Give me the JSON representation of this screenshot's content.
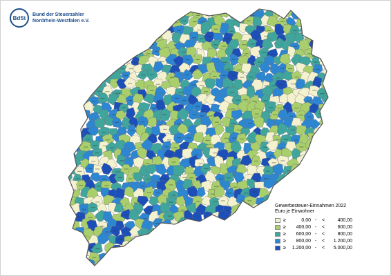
{
  "header": {
    "logo_mark": "BdSt",
    "org_line1": "Bund der Steuerzahler",
    "org_line2": "Nordrhein-Westfalen e.V."
  },
  "legend": {
    "title_line1": "Gewerbesteuer-Einnahmen 2022",
    "title_line2": "Euro je Einwohner",
    "classes": [
      {
        "symbol": "≥",
        "from": "0,00",
        "dash": "-",
        "lt": "<",
        "to": "400,00",
        "color": "#f4f1cf"
      },
      {
        "symbol": "≥",
        "from": "400,00",
        "dash": "-",
        "lt": "<",
        "to": "600,00",
        "color": "#a9cf6c"
      },
      {
        "symbol": "≥",
        "from": "600,00",
        "dash": "-",
        "lt": "<",
        "to": "800,00",
        "color": "#3fa59d"
      },
      {
        "symbol": "≥",
        "from": "800,00",
        "dash": "-",
        "lt": "<",
        "to": "1.200,00",
        "color": "#2d86d2"
      },
      {
        "symbol": "≥",
        "from": "1.200,00",
        "dash": "-",
        "lt": "<",
        "to": "5.000,00",
        "color": "#1d4fb8"
      }
    ]
  },
  "map": {
    "region": "Nordrhein-Westfalen",
    "boundary_color": "#6f6f6f"
  }
}
